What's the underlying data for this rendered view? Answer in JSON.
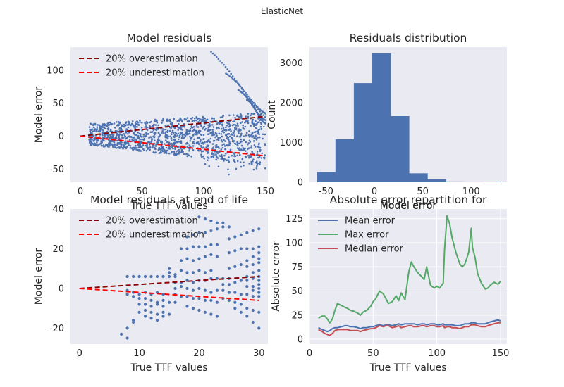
{
  "suptitle": "ElasticNet",
  "colors": {
    "background": "#eaeaf2",
    "grid": "#ffffff",
    "scatter": "#4c72b0",
    "over": "#8b0000",
    "under": "#ff0000",
    "hist": "#4c72b0",
    "mean": "#4c72b0",
    "max": "#55a868",
    "median": "#c44e52"
  },
  "chart_data": [
    {
      "type": "scatter",
      "title": "Model residuals",
      "xlabel": "True TTF values",
      "ylabel": "Model error",
      "xlim": [
        -8,
        152
      ],
      "ylim": [
        -70,
        135
      ],
      "xticks": [
        0,
        50,
        100,
        150
      ],
      "yticks": [
        -50,
        0,
        50,
        100
      ],
      "grid": false,
      "legend_position": "top-left",
      "lines": [
        {
          "name": "20% overestimation",
          "style": "dashed",
          "color": "#8b0000",
          "x": [
            0,
            150
          ],
          "y": [
            0,
            30
          ]
        },
        {
          "name": "20% underestimation",
          "style": "dashed",
          "color": "#ff0000",
          "x": [
            0,
            150
          ],
          "y": [
            0,
            -30
          ]
        }
      ],
      "scatter_series": [
        {
          "x_range": [
            7,
            150
          ],
          "pattern": "residual_cloud",
          "y_min": -65,
          "y_max": 40
        },
        {
          "x_range": [
            105,
            150
          ],
          "pattern": "outlier_curves",
          "y_max": 128
        }
      ]
    },
    {
      "type": "bar",
      "title": "Residuals distribution",
      "xlabel": "Model error",
      "ylabel": "Count",
      "xlim": [
        -67,
        137
      ],
      "ylim": [
        0,
        3400
      ],
      "xticks": [
        -50,
        0,
        50,
        100
      ],
      "yticks": [
        0,
        1000,
        2000,
        3000
      ],
      "grid": false,
      "bins": [
        {
          "x0": -59,
          "x1": -40,
          "count": 250
        },
        {
          "x0": -40,
          "x1": -21,
          "count": 1080
        },
        {
          "x0": -21,
          "x1": -2,
          "count": 2490
        },
        {
          "x0": -2,
          "x1": 17,
          "count": 3240
        },
        {
          "x0": 17,
          "x1": 36,
          "count": 1660
        },
        {
          "x0": 36,
          "x1": 55,
          "count": 220
        },
        {
          "x0": 55,
          "x1": 74,
          "count": 70
        },
        {
          "x0": 74,
          "x1": 93,
          "count": 15
        },
        {
          "x0": 93,
          "x1": 112,
          "count": 12
        },
        {
          "x0": 112,
          "x1": 131,
          "count": 8
        }
      ]
    },
    {
      "type": "scatter",
      "title": "Model residuals at end of life",
      "xlabel": "True TTF values",
      "ylabel": "Model error",
      "xlim": [
        -1.5,
        31.5
      ],
      "ylim": [
        -28,
        40
      ],
      "xticks": [
        0,
        10,
        20,
        30
      ],
      "yticks": [
        -20,
        0,
        20,
        40
      ],
      "grid": false,
      "legend_position": "top-left",
      "lines": [
        {
          "name": "20% overestimation",
          "style": "dashed",
          "color": "#8b0000",
          "x": [
            0,
            30
          ],
          "y": [
            0,
            6
          ]
        },
        {
          "name": "20% underestimation",
          "style": "dashed",
          "color": "#ff0000",
          "x": [
            0,
            30
          ],
          "y": [
            0,
            -6
          ]
        }
      ],
      "points": [
        [
          7,
          -23
        ],
        [
          8,
          -25
        ],
        [
          8,
          -20
        ],
        [
          9,
          -17
        ],
        [
          9,
          -16
        ],
        [
          8,
          6
        ],
        [
          9,
          6
        ],
        [
          10,
          6
        ],
        [
          11,
          6
        ],
        [
          12,
          6
        ],
        [
          13,
          6
        ],
        [
          14,
          6
        ],
        [
          15,
          6
        ],
        [
          16,
          6
        ],
        [
          8,
          -1
        ],
        [
          9,
          -2
        ],
        [
          10,
          -3
        ],
        [
          11,
          -2
        ],
        [
          12,
          -3
        ],
        [
          13,
          -2
        ],
        [
          14,
          -3
        ],
        [
          8,
          -3
        ],
        [
          9,
          -4
        ],
        [
          10,
          -5
        ],
        [
          11,
          -5
        ],
        [
          12,
          -6
        ],
        [
          13,
          -7
        ],
        [
          14,
          -6
        ],
        [
          10,
          -8
        ],
        [
          11,
          -8
        ],
        [
          12,
          -9
        ],
        [
          13,
          -8
        ],
        [
          14,
          -9
        ],
        [
          15,
          -7
        ],
        [
          16,
          -7
        ],
        [
          10,
          -12
        ],
        [
          11,
          -11
        ],
        [
          12,
          -12
        ],
        [
          13,
          -13
        ],
        [
          14,
          -12
        ],
        [
          15,
          10
        ],
        [
          15,
          8
        ],
        [
          16,
          7
        ],
        [
          17,
          9
        ],
        [
          18,
          8
        ],
        [
          19,
          8
        ],
        [
          20,
          9
        ],
        [
          21,
          8
        ],
        [
          22,
          9
        ],
        [
          17,
          14
        ],
        [
          18,
          15
        ],
        [
          19,
          14
        ],
        [
          20,
          15
        ],
        [
          21,
          16
        ],
        [
          22,
          17
        ],
        [
          23,
          16
        ],
        [
          17,
          20
        ],
        [
          18,
          20
        ],
        [
          19,
          21
        ],
        [
          20,
          21
        ],
        [
          21,
          21
        ],
        [
          22,
          22
        ],
        [
          23,
          22
        ],
        [
          18,
          26
        ],
        [
          19,
          27
        ],
        [
          20,
          28
        ],
        [
          21,
          28
        ],
        [
          22,
          29
        ],
        [
          23,
          30
        ],
        [
          24,
          31
        ],
        [
          25,
          31
        ],
        [
          20,
          36
        ],
        [
          21,
          35
        ],
        [
          22,
          34
        ],
        [
          23,
          33
        ],
        [
          24,
          33
        ],
        [
          16,
          0
        ],
        [
          17,
          1
        ],
        [
          18,
          0
        ],
        [
          19,
          -1
        ],
        [
          20,
          0
        ],
        [
          21,
          -1
        ],
        [
          22,
          -2
        ],
        [
          23,
          -1
        ],
        [
          24,
          -1
        ],
        [
          16,
          3
        ],
        [
          17,
          3
        ],
        [
          18,
          4
        ],
        [
          19,
          3
        ],
        [
          20,
          4
        ],
        [
          21,
          4
        ],
        [
          22,
          5
        ],
        [
          23,
          5
        ],
        [
          24,
          5
        ],
        [
          25,
          5
        ],
        [
          16,
          -3
        ],
        [
          17,
          -4
        ],
        [
          18,
          -4
        ],
        [
          19,
          -5
        ],
        [
          20,
          -5
        ],
        [
          21,
          -6
        ],
        [
          22,
          -6
        ],
        [
          23,
          -7
        ],
        [
          18,
          -9
        ],
        [
          19,
          -10
        ],
        [
          20,
          -11
        ],
        [
          21,
          -12
        ],
        [
          22,
          -13
        ],
        [
          23,
          -14
        ],
        [
          24,
          -5
        ],
        [
          25,
          -6
        ],
        [
          26,
          -7
        ],
        [
          27,
          -8
        ],
        [
          28,
          -10
        ],
        [
          29,
          -11
        ],
        [
          30,
          -12
        ],
        [
          25,
          10
        ],
        [
          26,
          11
        ],
        [
          27,
          12
        ],
        [
          28,
          14
        ],
        [
          29,
          16
        ],
        [
          30,
          18
        ],
        [
          25,
          18
        ],
        [
          26,
          19
        ],
        [
          27,
          20
        ],
        [
          28,
          20
        ],
        [
          29,
          20
        ],
        [
          30,
          21
        ],
        [
          25,
          25
        ],
        [
          26,
          26
        ],
        [
          27,
          27
        ],
        [
          28,
          28
        ],
        [
          29,
          29
        ],
        [
          30,
          30
        ],
        [
          24,
          2
        ],
        [
          25,
          2
        ],
        [
          26,
          3
        ],
        [
          27,
          4
        ],
        [
          28,
          4
        ],
        [
          29,
          5
        ],
        [
          30,
          6
        ],
        [
          25,
          -2
        ],
        [
          26,
          -2
        ],
        [
          27,
          -3
        ],
        [
          28,
          -3
        ],
        [
          29,
          -4
        ],
        [
          30,
          -4
        ],
        [
          28,
          -14
        ],
        [
          29,
          -17
        ],
        [
          30,
          -20
        ],
        [
          27,
          -12
        ],
        [
          26,
          -10
        ],
        [
          28,
          6
        ],
        [
          29,
          8
        ],
        [
          30,
          9
        ],
        [
          30,
          13
        ],
        [
          30,
          15
        ],
        [
          29,
          12
        ],
        [
          28,
          11
        ],
        [
          29,
          -1
        ],
        [
          30,
          0
        ],
        [
          30,
          2
        ],
        [
          30,
          -2
        ],
        [
          30,
          4
        ],
        [
          29,
          1
        ],
        [
          28,
          1
        ],
        [
          13,
          -16
        ],
        [
          12,
          -15
        ],
        [
          11,
          -14
        ],
        [
          14,
          -14
        ],
        [
          15,
          -13
        ]
      ]
    },
    {
      "type": "line",
      "title": "Absolute error repartition for",
      "title2": "Model error",
      "xlabel": "True TTF values",
      "ylabel": "Absolute error",
      "xlim": [
        0,
        155
      ],
      "ylim": [
        -5,
        135
      ],
      "xticks": [
        0,
        50,
        100,
        150
      ],
      "yticks": [
        0,
        25,
        50,
        75,
        100,
        125
      ],
      "grid": true,
      "legend_position": "top-left",
      "x": [
        7,
        10,
        12,
        14,
        16,
        18,
        20,
        22,
        25,
        28,
        30,
        32,
        35,
        38,
        40,
        42,
        45,
        48,
        50,
        52,
        55,
        58,
        60,
        62,
        65,
        68,
        70,
        72,
        75,
        78,
        80,
        82,
        85,
        88,
        90,
        92,
        95,
        98,
        100,
        102,
        105,
        106,
        108,
        110,
        112,
        115,
        118,
        120,
        122,
        125,
        127,
        128,
        130,
        132,
        135,
        138,
        140,
        142,
        145,
        148,
        150
      ],
      "series": [
        {
          "name": "Mean error",
          "values": [
            12,
            10,
            9,
            8,
            9,
            11,
            12,
            12,
            13,
            14,
            14,
            13,
            13,
            12,
            11,
            12,
            12,
            13,
            13,
            14,
            15,
            14,
            15,
            15,
            14,
            15,
            16,
            15,
            16,
            16,
            16,
            16,
            15,
            16,
            16,
            15,
            16,
            16,
            15,
            15,
            16,
            15,
            15,
            15,
            15,
            14,
            14,
            15,
            16,
            16,
            17,
            17,
            17,
            16,
            16,
            16,
            17,
            18,
            19,
            20,
            19
          ]
        },
        {
          "name": "Max error",
          "values": [
            22,
            24,
            24,
            21,
            17,
            21,
            30,
            37,
            35,
            33,
            32,
            30,
            29,
            27,
            25,
            28,
            30,
            34,
            39,
            42,
            50,
            47,
            42,
            37,
            39,
            45,
            40,
            48,
            41,
            70,
            80,
            75,
            69,
            65,
            62,
            75,
            56,
            53,
            55,
            53,
            58,
            92,
            128,
            120,
            105,
            90,
            78,
            75,
            78,
            90,
            115,
            95,
            85,
            68,
            58,
            52,
            53,
            56,
            59,
            57,
            60
          ]
        },
        {
          "name": "Median error",
          "values": [
            10,
            8,
            6,
            5,
            4,
            6,
            9,
            10,
            10,
            10,
            10,
            9,
            9,
            9,
            8,
            9,
            10,
            11,
            11,
            12,
            14,
            13,
            14,
            14,
            12,
            13,
            14,
            12,
            13,
            14,
            14,
            13,
            13,
            14,
            14,
            13,
            14,
            14,
            13,
            13,
            14,
            12,
            13,
            13,
            12,
            12,
            11,
            12,
            13,
            13,
            15,
            15,
            15,
            14,
            13,
            13,
            14,
            15,
            16,
            17,
            17
          ]
        }
      ]
    }
  ]
}
